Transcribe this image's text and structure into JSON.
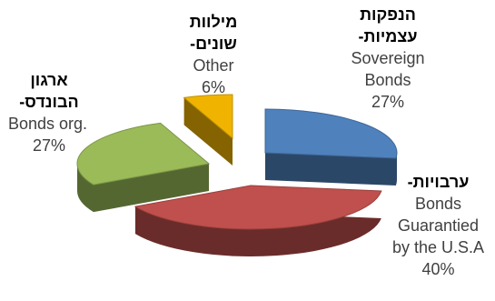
{
  "chart_data": {
    "type": "pie",
    "style": "3d-exploded",
    "slices": [
      {
        "he": "הנפקות",
        "he2": "עצמיות-",
        "en": "Sovereign",
        "en2": "Bonds",
        "value": 27,
        "label": "27%",
        "color": "#4F81BD"
      },
      {
        "he": "ערבויות-",
        "en": "Bonds",
        "en2": "Guarantied",
        "en3": "by the U.S.A",
        "value": 40,
        "label": "40%",
        "color": "#C0504D"
      },
      {
        "he": "ארגון",
        "he2": "הבונדס-",
        "en": "Bonds org.",
        "value": 27,
        "label": "27%",
        "color": "#9BBB59"
      },
      {
        "he": "מילוות",
        "he2": "שונים-",
        "en": "Other",
        "value": 6,
        "label": "6%",
        "color": "#F0B400"
      }
    ]
  }
}
